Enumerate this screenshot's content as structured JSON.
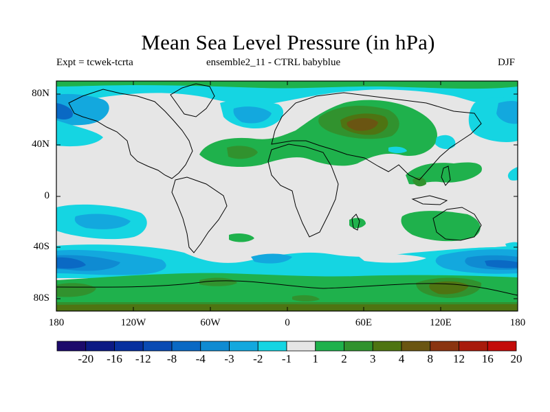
{
  "title": "Mean Sea Level Pressure (in hPa)",
  "subtitle_left": "Expt = tcwek-tcrta",
  "subtitle_center": "ensemble2_11 - CTRL babyblue",
  "subtitle_right": "DJF",
  "y_labels": [
    "80N",
    "40N",
    "0",
    "40S",
    "80S"
  ],
  "x_labels": [
    "180",
    "120W",
    "60W",
    "0",
    "60E",
    "120E",
    "180"
  ],
  "colorbar": {
    "labels": [
      "-20",
      "-16",
      "-12",
      "-8",
      "-4",
      "-3",
      "-2",
      "-1",
      "1",
      "2",
      "3",
      "4",
      "8",
      "12",
      "16",
      "20"
    ],
    "colors": [
      "#1c0a6b",
      "#0c1a84",
      "#07309e",
      "#0a4bb3",
      "#0a69c4",
      "#0f8bd2",
      "#13a8de",
      "#15d5e2",
      "#e6e6e6",
      "#1fb14c",
      "#31922e",
      "#4e7412",
      "#6a5512",
      "#8a3410",
      "#a81b0c",
      "#c30c0a"
    ]
  },
  "map": {
    "ocean_land_background": "#e6e6e6",
    "coastline_color": "#000000"
  }
}
